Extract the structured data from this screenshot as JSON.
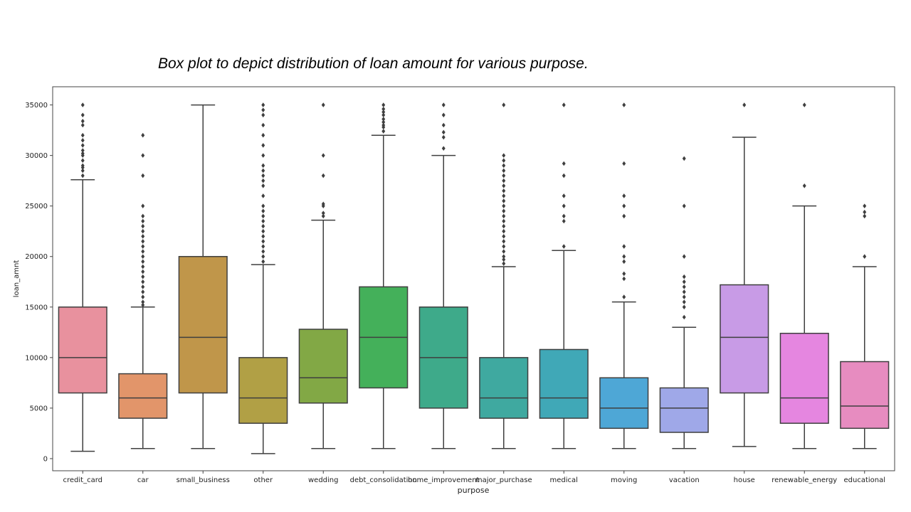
{
  "slide": {
    "title": "Box plot to depict distribution of loan amount for various purpose."
  },
  "chart_data": {
    "type": "box",
    "xlabel": "purpose",
    "ylabel": "loan_amnt",
    "ylim": [
      -1200,
      36800
    ],
    "yticks": [
      0,
      5000,
      10000,
      15000,
      20000,
      25000,
      30000,
      35000
    ],
    "grid": false,
    "legend": "none",
    "categories": [
      "credit_card",
      "car",
      "small_business",
      "other",
      "wedding",
      "debt_consolidation",
      "home_improvement",
      "major_purchase",
      "medical",
      "moving",
      "vacation",
      "house",
      "renewable_energy",
      "educational"
    ],
    "colors": [
      "#e8919e",
      "#e2956a",
      "#c0964a",
      "#b1a045",
      "#82a845",
      "#44b05a",
      "#3eaa8a",
      "#3fa9a0",
      "#40a8b7",
      "#4ea7d6",
      "#9fa8e8",
      "#c89be6",
      "#e586e0",
      "#e78cc0"
    ],
    "boxes": [
      {
        "name": "credit_card",
        "whislo": 725,
        "q1": 6500,
        "med": 10000,
        "q3": 15000,
        "whishi": 27600,
        "fliers": [
          28000,
          28500,
          28800,
          29000,
          29500,
          30000,
          30200,
          30500,
          31000,
          31500,
          32000,
          33000,
          33400,
          34000,
          35000
        ]
      },
      {
        "name": "car",
        "whislo": 1000,
        "q1": 4000,
        "med": 6000,
        "q3": 8400,
        "whishi": 15000,
        "fliers": [
          15200,
          15500,
          16000,
          16500,
          17000,
          17500,
          18000,
          18500,
          19000,
          19500,
          20000,
          20500,
          21000,
          21500,
          22000,
          22500,
          23000,
          23500,
          24000,
          25000,
          28000,
          30000,
          32000
        ]
      },
      {
        "name": "small_business",
        "whislo": 1000,
        "q1": 6500,
        "med": 12000,
        "q3": 20000,
        "whishi": 35000,
        "fliers": []
      },
      {
        "name": "other",
        "whislo": 500,
        "q1": 3500,
        "med": 6000,
        "q3": 10000,
        "whishi": 19200,
        "fliers": [
          19500,
          20000,
          20500,
          21000,
          21500,
          22000,
          22500,
          23000,
          23500,
          24000,
          24500,
          25000,
          26000,
          27000,
          27500,
          28000,
          28500,
          29000,
          30000,
          31000,
          32000,
          33000,
          34000,
          34500,
          35000
        ]
      },
      {
        "name": "wedding",
        "whislo": 1000,
        "q1": 5500,
        "med": 8000,
        "q3": 12800,
        "whishi": 23600,
        "fliers": [
          24000,
          24300,
          25000,
          25200,
          28000,
          30000,
          35000
        ]
      },
      {
        "name": "debt_consolidation",
        "whislo": 1000,
        "q1": 7000,
        "med": 12000,
        "q3": 17000,
        "whishi": 32000,
        "fliers": [
          32400,
          32800,
          33000,
          33300,
          33600,
          34000,
          34300,
          34600,
          35000
        ]
      },
      {
        "name": "home_improvement",
        "whislo": 1000,
        "q1": 5000,
        "med": 10000,
        "q3": 15000,
        "whishi": 30000,
        "fliers": [
          30700,
          31800,
          32300,
          33000,
          34000,
          35000
        ]
      },
      {
        "name": "major_purchase",
        "whislo": 1000,
        "q1": 4000,
        "med": 6000,
        "q3": 10000,
        "whishi": 19000,
        "fliers": [
          19300,
          19700,
          20000,
          20500,
          21000,
          21500,
          22000,
          22500,
          23000,
          23500,
          24000,
          24500,
          25000,
          25500,
          26000,
          26500,
          27000,
          27500,
          28000,
          28500,
          29000,
          29500,
          30000,
          35000
        ]
      },
      {
        "name": "medical",
        "whislo": 1000,
        "q1": 4000,
        "med": 6000,
        "q3": 10800,
        "whishi": 20600,
        "fliers": [
          21000,
          23500,
          24000,
          25000,
          26000,
          28000,
          29200,
          35000
        ]
      },
      {
        "name": "moving",
        "whislo": 1000,
        "q1": 3000,
        "med": 5000,
        "q3": 8000,
        "whishi": 15500,
        "fliers": [
          16000,
          17800,
          18300,
          19500,
          20000,
          21000,
          24000,
          25000,
          26000,
          29200,
          35000
        ]
      },
      {
        "name": "vacation",
        "whislo": 1000,
        "q1": 2600,
        "med": 5000,
        "q3": 7000,
        "whishi": 13000,
        "fliers": [
          14000,
          15000,
          15500,
          16000,
          16500,
          17000,
          17500,
          18000,
          20000,
          25000,
          29700
        ]
      },
      {
        "name": "house",
        "whislo": 1200,
        "q1": 6500,
        "med": 12000,
        "q3": 17200,
        "whishi": 31800,
        "fliers": [
          35000
        ]
      },
      {
        "name": "renewable_energy",
        "whislo": 1000,
        "q1": 3500,
        "med": 6000,
        "q3": 12400,
        "whishi": 25000,
        "fliers": [
          27000,
          35000
        ]
      },
      {
        "name": "educational",
        "whislo": 1000,
        "q1": 3000,
        "med": 5200,
        "q3": 9600,
        "whishi": 19000,
        "fliers": [
          20000,
          24000,
          24400,
          25000
        ]
      }
    ]
  }
}
